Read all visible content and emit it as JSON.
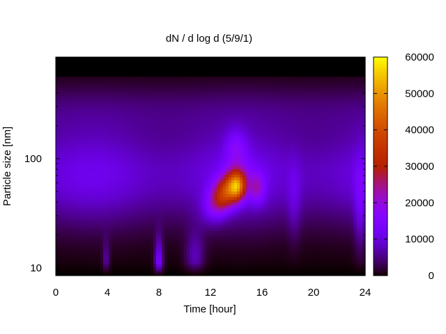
{
  "chart_data": {
    "type": "heatmap",
    "title": "dN / d log d (5/9/1)",
    "xlabel": "Time [hour]",
    "ylabel": "Particle size [nm]",
    "x_range": [
      0,
      24
    ],
    "x_ticks": [
      0,
      4,
      8,
      12,
      16,
      20,
      24
    ],
    "y_scale": "log",
    "y_range": [
      8.5,
      850
    ],
    "y_ticks": [
      10,
      100
    ],
    "colorbar": {
      "range": [
        0,
        60000
      ],
      "ticks": [
        0,
        10000,
        20000,
        30000,
        40000,
        50000,
        60000
      ],
      "palette": "gnuplot rgbformulae 7,5,15 (black-blue-purple-red-orange-yellow)"
    },
    "features": [
      {
        "x": 14.0,
        "y": 55,
        "value": 55000
      },
      {
        "x": 13.0,
        "y": 42,
        "value": 36000
      },
      {
        "x": 15.5,
        "y": 55,
        "value": 26000
      },
      {
        "x": 8.0,
        "y": 9.5,
        "value": 14000
      }
    ],
    "legend": "colorbar right"
  }
}
